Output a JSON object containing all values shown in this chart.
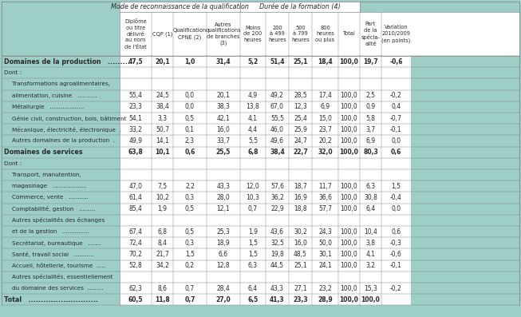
{
  "header_group1": "Mode de reconnaissance de la qualification",
  "header_group2": "Durée de la formation (4)",
  "col_headers": [
    "Diplôme\nou titre\ndélivré\nau nom\nde l'État",
    "CQP (1)",
    "Qualification\nCPNE (2)",
    "Autres\nqualifications\nde branches\n(3)",
    "Moins\nde 200\nheures",
    "200\nà 499\nheures",
    "500\nà 799\nheures",
    "800\nheures\nou plus",
    "Total",
    "Part\nde la\nspécia-\nalité",
    "Variation\n2010/2009\n(en points)"
  ],
  "rows": [
    {
      "label": "Domaines de la production   .........",
      "bold": true,
      "indent": 0,
      "str_values": [
        "47,5",
        "20,1",
        "1,0",
        "31,4",
        "5,2",
        "51,4",
        "25,1",
        "18,4",
        "100,0",
        "19,7",
        "-0,6"
      ]
    },
    {
      "label": "Dont :",
      "bold": false,
      "indent": 0,
      "str_values": null
    },
    {
      "label": "Transformations agroalimentaires,",
      "bold": false,
      "indent": 1,
      "str_values": null
    },
    {
      "label": "alimentation, cuisine   ...........",
      "bold": false,
      "indent": 1,
      "str_values": [
        "55,4",
        "24,5",
        "0,0",
        "20,1",
        "4,9",
        "49,2",
        "28,5",
        "17,4",
        "100,0",
        "2,5",
        "-0,2"
      ]
    },
    {
      "label": "Métallurgie   ...................",
      "bold": false,
      "indent": 1,
      "str_values": [
        "23,3",
        "38,4",
        "0,0",
        "38,3",
        "13,8",
        "67,0",
        "12,3",
        "6,9",
        "100,0",
        "0,9",
        "0,4"
      ]
    },
    {
      "label": "Génie civil, construction, bois, bâtiment",
      "bold": false,
      "indent": 1,
      "str_values": [
        "54,1",
        "3,3",
        "0,5",
        "42,1",
        "4,1",
        "55,5",
        "25,4",
        "15,0",
        "100,0",
        "5,8",
        "-0,7"
      ]
    },
    {
      "label": "Mécanique, électricité, électronique  .",
      "bold": false,
      "indent": 1,
      "str_values": [
        "33,2",
        "50,7",
        "0,1",
        "16,0",
        "4,4",
        "46,0",
        "25,9",
        "23,7",
        "100,0",
        "3,7",
        "-0,1"
      ]
    },
    {
      "label": "Autres domaines de la production  .",
      "bold": false,
      "indent": 1,
      "str_values": [
        "49,9",
        "14,1",
        "2,3",
        "33,7",
        "5,5",
        "49,6",
        "24,7",
        "20,2",
        "100,0",
        "6,9",
        "0,0"
      ]
    },
    {
      "label": "Domaines de services",
      "bold": true,
      "indent": 0,
      "str_values": [
        "63,8",
        "10,1",
        "0,6",
        "25,5",
        "6,8",
        "38,4",
        "22,7",
        "32,0",
        "100,0",
        "80,3",
        "0,6"
      ]
    },
    {
      "label": "Dont :",
      "bold": false,
      "indent": 0,
      "str_values": null
    },
    {
      "label": "Transport, manutention,",
      "bold": false,
      "indent": 1,
      "str_values": null
    },
    {
      "label": "magasinage   ...................",
      "bold": false,
      "indent": 1,
      "str_values": [
        "47,0",
        "7,5",
        "2,2",
        "43,3",
        "12,0",
        "57,6",
        "18,7",
        "11,7",
        "100,0",
        "6,3",
        "1,5"
      ]
    },
    {
      "label": "Commerce, vente   ...........",
      "bold": false,
      "indent": 1,
      "str_values": [
        "61,4",
        "10,2",
        "0,3",
        "28,0",
        "10,3",
        "36,2",
        "16,9",
        "36,6",
        "100,0",
        "30,8",
        "-0,4"
      ]
    },
    {
      "label": "Comptabilité, gestion   .........",
      "bold": false,
      "indent": 1,
      "str_values": [
        "85,4",
        "1,9",
        "0,5",
        "12,1",
        "0,7",
        "22,9",
        "18,8",
        "57,7",
        "100,0",
        "6,4",
        "0,0"
      ]
    },
    {
      "label": "Autres spécialités des échanges",
      "bold": false,
      "indent": 1,
      "str_values": null
    },
    {
      "label": "et de la gestion   ...............",
      "bold": false,
      "indent": 1,
      "str_values": [
        "67,4",
        "6,8",
        "0,5",
        "25,3",
        "1,9",
        "43,6",
        "30,2",
        "24,3",
        "100,0",
        "10,4",
        "0,6"
      ]
    },
    {
      "label": "Secrétariat, bureautique   .......",
      "bold": false,
      "indent": 1,
      "str_values": [
        "72,4",
        "8,4",
        "0,3",
        "18,9",
        "1,5",
        "32,5",
        "16,0",
        "50,0",
        "100,0",
        "3,8",
        "-0,3"
      ]
    },
    {
      "label": "Santé, travail social   ...........",
      "bold": false,
      "indent": 1,
      "str_values": [
        "70,2",
        "21,7",
        "1,5",
        "6,6",
        "1,5",
        "19,8",
        "48,5",
        "30,1",
        "100,0",
        "4,1",
        "-0,6"
      ]
    },
    {
      "label": "Accueil, hôtellerie, tourisme  .....",
      "bold": false,
      "indent": 1,
      "str_values": [
        "52,8",
        "34,2",
        "0,2",
        "12,8",
        "6,3",
        "44,5",
        "25,1",
        "24,1",
        "100,0",
        "3,2",
        "-0,1"
      ]
    },
    {
      "label": "Autres spécialités, essentiellement",
      "bold": false,
      "indent": 1,
      "str_values": null
    },
    {
      "label": "du domaine des services  .........",
      "bold": false,
      "indent": 1,
      "str_values": [
        "62,3",
        "8,6",
        "0,7",
        "28,4",
        "6,4",
        "43,3",
        "27,1",
        "23,2",
        "100,0",
        "15,3",
        "-0,2"
      ]
    },
    {
      "label": "Total   ............................",
      "bold": true,
      "indent": 0,
      "str_values": [
        "60,5",
        "11,8",
        "0,7",
        "27,0",
        "6,5",
        "41,3",
        "23,3",
        "28,9",
        "100,0",
        "100,0",
        ""
      ]
    }
  ],
  "bg_page": "#9ecfc7",
  "bg_header": "#9ecfc7",
  "bg_subheader": "#b8ddd8",
  "bg_white": "#ffffff",
  "bg_data": "#daeeed",
  "border_color": "#888888",
  "text_color": "#2a2a2a"
}
